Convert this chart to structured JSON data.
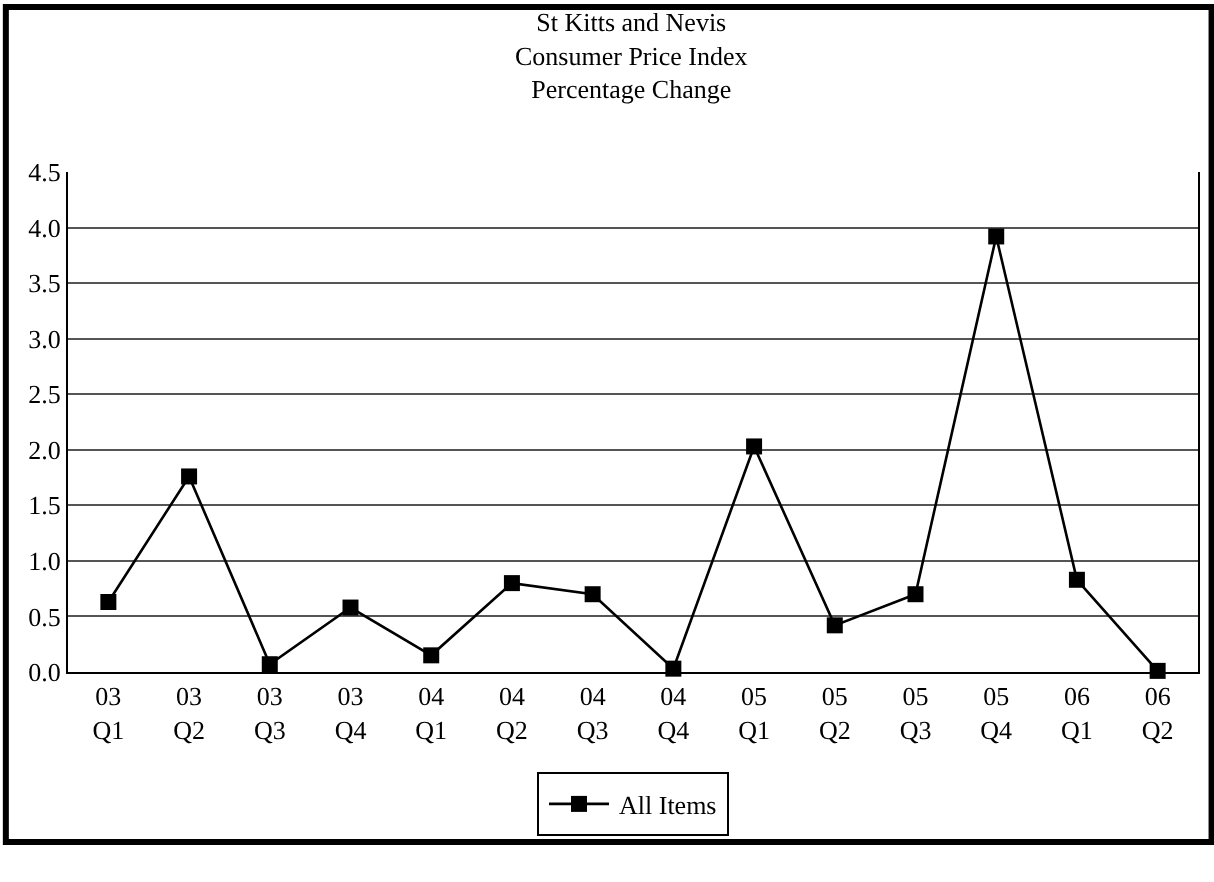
{
  "chart_data": {
    "type": "line",
    "title": "St Kitts and Nevis\nConsumer Price Index\nPercentage Change",
    "categories": [
      "03\nQ1",
      "03\nQ2",
      "03\nQ3",
      "03\nQ4",
      "04\nQ1",
      "04\nQ2",
      "04\nQ3",
      "04\nQ4",
      "05\nQ1",
      "05\nQ2",
      "05\nQ3",
      "05\nQ4",
      "06\nQ1",
      "06\nQ2"
    ],
    "series": [
      {
        "name": "All Items",
        "color": "#000000",
        "values": [
          0.63,
          1.76,
          0.07,
          0.58,
          0.15,
          0.8,
          0.7,
          0.03,
          2.03,
          0.42,
          0.7,
          3.92,
          0.83,
          0.01
        ]
      }
    ],
    "ylim": [
      0,
      4.5
    ],
    "yticks": [
      {
        "value": 0,
        "label": "0.0"
      },
      {
        "value": 0.5,
        "label": "0.5"
      },
      {
        "value": 1,
        "label": "1.0"
      },
      {
        "value": 1.5,
        "label": "1.5"
      },
      {
        "value": 2,
        "label": "2.0"
      },
      {
        "value": 2.5,
        "label": "2.5"
      },
      {
        "value": 3,
        "label": "3.0"
      },
      {
        "value": 3.5,
        "label": "3.5"
      },
      {
        "value": 4,
        "label": "4.0"
      },
      {
        "value": 4.5,
        "label": "4.5"
      }
    ],
    "grid": "y",
    "legend": "bottom",
    "marker": "square",
    "line_style": "solid"
  }
}
